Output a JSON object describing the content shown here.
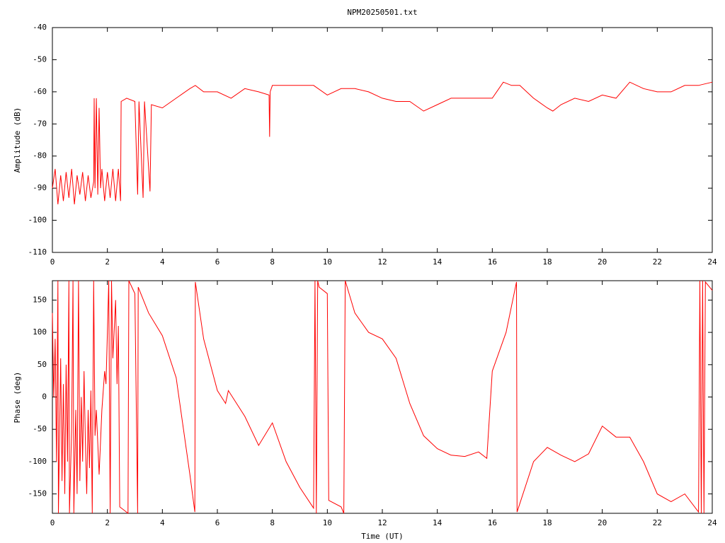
{
  "chart_data": [
    {
      "type": "line",
      "title": "NPM20250501.txt",
      "y_label": "Amplitude (dB)",
      "color": "#ff0000",
      "xlim": [
        0,
        24
      ],
      "xticks": [
        0,
        2,
        4,
        6,
        8,
        10,
        12,
        14,
        16,
        18,
        20,
        22,
        24
      ],
      "ylim": [
        -110,
        -40
      ],
      "yticks": [
        -40,
        -50,
        -60,
        -70,
        -80,
        -90,
        -100,
        -110
      ],
      "x": [
        0,
        0.1,
        0.2,
        0.3,
        0.4,
        0.5,
        0.6,
        0.7,
        0.8,
        0.9,
        1.0,
        1.1,
        1.2,
        1.3,
        1.4,
        1.5,
        1.52,
        1.55,
        1.6,
        1.65,
        1.7,
        1.75,
        1.8,
        1.9,
        2.0,
        2.1,
        2.2,
        2.3,
        2.4,
        2.48,
        2.5,
        2.7,
        3.0,
        3.1,
        3.15,
        3.3,
        3.35,
        3.55,
        3.6,
        4.0,
        4.5,
        5.0,
        5.2,
        5.5,
        6.0,
        6.5,
        7.0,
        7.5,
        7.88,
        7.9,
        7.92,
        8.0,
        8.5,
        9.0,
        9.5,
        10.0,
        10.5,
        11.0,
        11.5,
        12.0,
        12.5,
        13.0,
        13.5,
        14.0,
        14.5,
        15.0,
        15.5,
        16.0,
        16.4,
        16.7,
        17.0,
        17.5,
        18.0,
        18.2,
        18.5,
        19.0,
        19.5,
        20.0,
        20.5,
        21.0,
        21.5,
        22.0,
        22.5,
        23.0,
        23.5,
        24.0
      ],
      "values": [
        -90,
        -84,
        -95,
        -86,
        -94,
        -85,
        -93,
        -84,
        -95,
        -86,
        -92,
        -85,
        -94,
        -86,
        -93,
        -88,
        -62,
        -90,
        -62,
        -92,
        -65,
        -90,
        -84,
        -94,
        -85,
        -93,
        -84,
        -94,
        -84,
        -94,
        -63,
        -62,
        -63,
        -92,
        -63,
        -93,
        -63,
        -91,
        -64,
        -65,
        -62,
        -59,
        -58,
        -60,
        -60,
        -62,
        -59,
        -60,
        -61,
        -74,
        -60,
        -58,
        -58,
        -58,
        -58,
        -61,
        -59,
        -59,
        -60,
        -62,
        -63,
        -63,
        -66,
        -64,
        -62,
        -62,
        -62,
        -62,
        -57,
        -58,
        -58,
        -62,
        -65,
        -66,
        -64,
        -62,
        -63,
        -61,
        -62,
        -57,
        -59,
        -60,
        -60,
        -58,
        -58,
        -57
      ]
    },
    {
      "type": "line",
      "x_label": "Time (UT)",
      "y_label": "Phase (deg)",
      "color": "#ff0000",
      "xlim": [
        0,
        24
      ],
      "xticks": [
        0,
        2,
        4,
        6,
        8,
        10,
        12,
        14,
        16,
        18,
        20,
        22,
        24
      ],
      "ylim": [
        -180,
        180
      ],
      "yticks": [
        150,
        100,
        50,
        0,
        -50,
        -100,
        -150
      ],
      "x": [
        0,
        0.05,
        0.1,
        0.15,
        0.2,
        0.22,
        0.3,
        0.35,
        0.4,
        0.45,
        0.5,
        0.55,
        0.6,
        0.62,
        0.7,
        0.75,
        0.78,
        0.85,
        0.9,
        0.95,
        1.0,
        1.05,
        1.1,
        1.15,
        1.2,
        1.25,
        1.3,
        1.35,
        1.4,
        1.45,
        1.5,
        1.55,
        1.6,
        1.7,
        1.8,
        1.9,
        1.95,
        2.0,
        2.05,
        2.1,
        2.15,
        2.2,
        2.3,
        2.35,
        2.4,
        2.45,
        2.6,
        2.75,
        2.78,
        3.0,
        3.1,
        3.12,
        3.5,
        4.0,
        4.5,
        5.0,
        5.18,
        5.2,
        5.5,
        6.0,
        6.3,
        6.4,
        7.0,
        7.5,
        8.0,
        8.5,
        9.0,
        9.5,
        9.55,
        9.6,
        9.65,
        9.7,
        10.0,
        10.05,
        10.5,
        10.6,
        10.65,
        11.0,
        11.5,
        12.0,
        12.5,
        13.0,
        13.5,
        14.0,
        14.5,
        15.0,
        15.5,
        15.8,
        16.0,
        16.5,
        16.88,
        16.9,
        17.5,
        18.0,
        18.5,
        19.0,
        19.5,
        20.0,
        20.5,
        21.0,
        21.5,
        22.0,
        22.5,
        23.0,
        23.5,
        23.55,
        23.6,
        23.65,
        23.7,
        23.75,
        24.0
      ],
      "values": [
        130,
        0,
        90,
        -100,
        180,
        -180,
        60,
        -130,
        20,
        -150,
        50,
        -100,
        180,
        -180,
        -50,
        180,
        -180,
        -20,
        -150,
        180,
        -130,
        0,
        -100,
        40,
        -70,
        -150,
        -20,
        -110,
        10,
        -180,
        180,
        -60,
        -20,
        -120,
        -20,
        40,
        20,
        100,
        180,
        -180,
        180,
        60,
        150,
        20,
        110,
        -170,
        -175,
        -180,
        180,
        160,
        -180,
        170,
        130,
        95,
        30,
        -120,
        -178,
        178,
        90,
        10,
        -10,
        10,
        -30,
        -75,
        -40,
        -100,
        -140,
        -172,
        180,
        -180,
        180,
        170,
        160,
        -160,
        -170,
        -180,
        180,
        130,
        100,
        90,
        60,
        -10,
        -60,
        -80,
        -90,
        -92,
        -85,
        -95,
        40,
        100,
        178,
        -178,
        -100,
        -78,
        -90,
        -100,
        -88,
        -45,
        -62,
        -62,
        -100,
        -150,
        -162,
        -150,
        -178,
        180,
        -180,
        180,
        -180,
        178,
        165
      ]
    }
  ]
}
